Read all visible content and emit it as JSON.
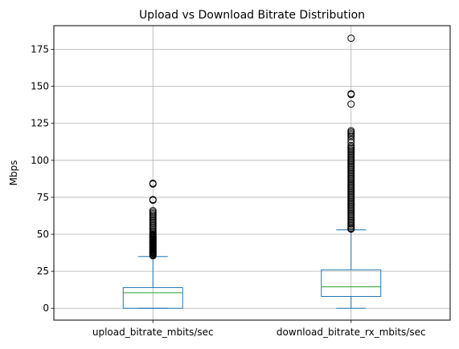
{
  "chart_data": {
    "type": "boxplot",
    "title": "Upload vs Download Bitrate Distribution",
    "xlabel": "",
    "ylabel": "Mbps",
    "ylim": [
      -8,
      191
    ],
    "yticks": [
      0,
      25,
      50,
      75,
      100,
      125,
      150,
      175
    ],
    "grid": true,
    "colors": {
      "box": "#1f77b4",
      "median": "#2ca02c",
      "grid": "#b0b0b0",
      "axes": "#000000"
    },
    "categories": [
      "upload_bitrate_mbits/sec",
      "download_bitrate_rx_mbits/sec"
    ],
    "boxes": [
      {
        "name": "upload_bitrate_mbits/sec",
        "whisker_low": 0,
        "q1": 0,
        "median": 10.5,
        "q3": 14,
        "whisker_high": 35,
        "outliers": [
          35.5,
          36,
          36.5,
          37,
          37.5,
          38,
          38.5,
          39,
          39.5,
          40,
          40.5,
          41,
          41.5,
          42,
          42.5,
          43,
          43.5,
          44,
          44.5,
          45,
          45.5,
          46,
          46.5,
          47,
          47.5,
          48,
          48.5,
          49,
          49.5,
          50,
          51,
          52,
          53,
          54,
          55,
          56,
          57,
          58,
          59,
          60,
          61,
          62,
          63,
          64,
          65,
          66,
          73,
          73.5,
          84,
          84.5
        ]
      },
      {
        "name": "download_bitrate_rx_mbits/sec",
        "whisker_low": 0,
        "q1": 8,
        "median": 14.5,
        "q3": 26,
        "whisker_high": 53,
        "outliers": [
          53.5,
          54,
          55,
          56,
          57,
          58,
          59,
          60,
          61,
          62,
          63,
          64,
          65,
          66,
          67,
          68,
          69,
          70,
          71,
          72,
          73,
          74,
          75,
          76,
          77,
          78,
          79,
          80,
          81,
          82,
          83,
          84,
          85,
          86,
          87,
          88,
          89,
          90,
          91,
          92,
          93,
          94,
          95,
          96,
          97,
          98,
          99,
          100,
          101,
          102,
          103,
          104,
          105,
          106,
          107,
          108,
          109,
          110,
          112,
          114,
          116,
          117,
          118,
          119,
          120,
          138,
          144.5,
          145,
          182.5
        ]
      }
    ]
  }
}
